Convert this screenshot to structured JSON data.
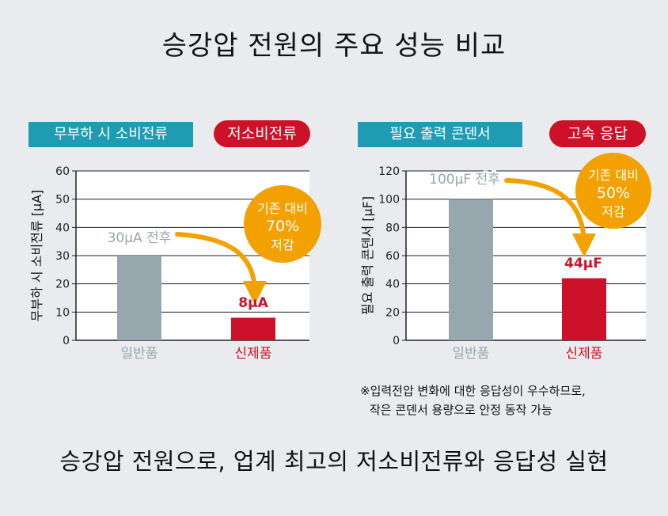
{
  "title": "승강압 전원의 주요 성능 비교",
  "footer": "승강압 전원으로, 업계 최고의 저소비전류와 응답성 실현",
  "note": {
    "line1": "※입력전압 변화에 대한 응답성이 우수하므로,",
    "line2": "작은 콘덴서 용량으로 안정 동작 가능"
  },
  "colors": {
    "teal": "#1f9bb3",
    "red": "#cd1128",
    "gray_bar": "#97a7ae",
    "orange": "#f3a100"
  },
  "chart_data": [
    {
      "type": "bar",
      "tag": "무부하 시 소비전류",
      "pill": "저소비전류",
      "ylabel": "무부하 시 소비전류 [μA]",
      "ylim": [
        0,
        60
      ],
      "yticks": [
        "0",
        "10",
        "20",
        "30",
        "40",
        "50",
        "60"
      ],
      "categories": [
        "일반품",
        "신제품"
      ],
      "values": [
        30,
        8
      ],
      "value_labels": [
        "30μA 전후",
        "8μA"
      ],
      "badge": [
        "기존 대비",
        "70%",
        "저감"
      ]
    },
    {
      "type": "bar",
      "tag": "필요 출력 콘덴서",
      "pill": "고속 응답",
      "ylabel": "필요 출력 콘덴서 [μF]",
      "ylim": [
        0,
        120
      ],
      "yticks": [
        "0",
        "20",
        "40",
        "60",
        "80",
        "100",
        "120"
      ],
      "categories": [
        "일반품",
        "신제품"
      ],
      "values": [
        100,
        44
      ],
      "value_labels": [
        "100μF 전후",
        "44μF"
      ],
      "badge": [
        "기존 대비",
        "50%",
        "저감"
      ]
    }
  ]
}
